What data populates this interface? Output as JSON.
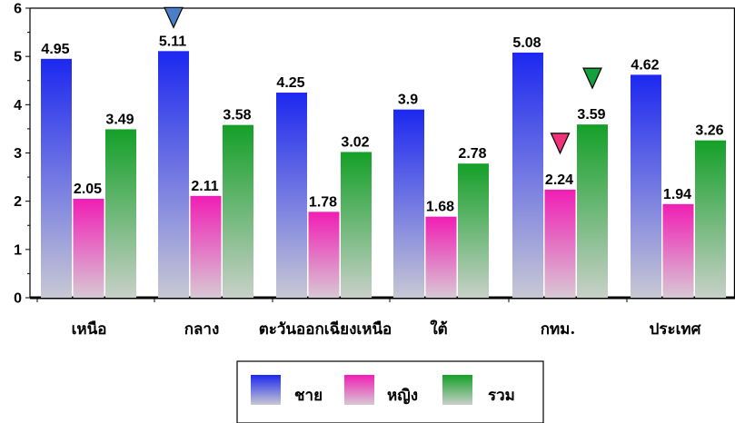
{
  "chart_data": {
    "type": "bar",
    "categories": [
      "เหนือ",
      "กลาง",
      "ตะวันออกเฉียงเหนือ",
      "ใต้",
      "กทม.",
      "ประเทศ"
    ],
    "series": [
      {
        "name": "ชาย",
        "values": [
          4.95,
          5.11,
          4.25,
          3.9,
          5.08,
          4.62
        ],
        "color_top": "#1c28f0",
        "color_bottom": "#c8c8d4"
      },
      {
        "name": "หญิง",
        "values": [
          2.05,
          2.11,
          1.78,
          1.68,
          2.24,
          1.94
        ],
        "color_top": "#f01eb4",
        "color_bottom": "#d8c8d4"
      },
      {
        "name": "รวม",
        "values": [
          3.49,
          3.58,
          3.02,
          2.78,
          3.59,
          3.26
        ],
        "color_top": "#14a028",
        "color_bottom": "#c8d0c8"
      }
    ],
    "value_labels": [
      [
        "4.95",
        "5.11",
        "4.25",
        "3.9",
        "5.08",
        "4.62"
      ],
      [
        "2.05",
        "2.11",
        "1.78",
        "1.68",
        "2.24",
        "1.94"
      ],
      [
        "3.49",
        "3.58",
        "3.02",
        "2.78",
        "3.59",
        "3.26"
      ]
    ],
    "y_ticks": [
      "0",
      "1",
      "2",
      "3",
      "4",
      "5",
      "6"
    ],
    "ylim": [
      0,
      6
    ],
    "grid": false,
    "legend_position": "bottom-center",
    "markers": [
      {
        "category": "กลาง",
        "series": "ชาย",
        "color": "#4a7fc8",
        "shape": "triangle-down"
      },
      {
        "category": "กทม.",
        "series": "หญิง",
        "color": "#f0327a",
        "shape": "triangle-down"
      },
      {
        "category": "กทม.",
        "series": "รวม",
        "color": "#14a03c",
        "shape": "triangle-down"
      }
    ]
  }
}
